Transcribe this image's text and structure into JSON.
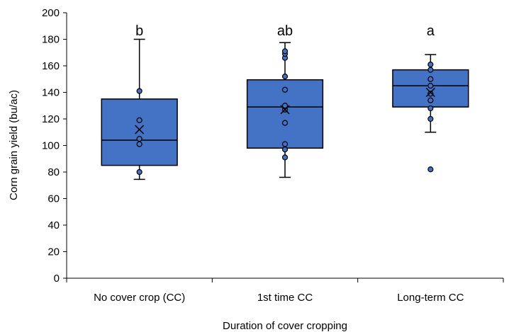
{
  "chart_data": {
    "type": "box",
    "title": "",
    "xlabel": "Duration of cover cropping",
    "ylabel": "Corn grain yield (bu/ac)",
    "ylim": [
      0,
      200
    ],
    "yticks": [
      0,
      20,
      40,
      60,
      80,
      100,
      120,
      140,
      160,
      180,
      200
    ],
    "grid": false,
    "legend": "none",
    "colors": {
      "box_fill": "#4472C4",
      "box_stroke": "#000000",
      "point_fill": "#4472C4"
    },
    "categories": [
      "No cover crop (CC)",
      "1st time CC",
      "Long-term CC"
    ],
    "significance_letters": [
      "b",
      "ab",
      "a"
    ],
    "boxes": [
      {
        "whisker_low": 74.5,
        "q1": 85,
        "median": 104,
        "q3": 135,
        "whisker_high": 180,
        "mean": 112
      },
      {
        "whisker_low": 76,
        "q1": 98,
        "median": 129,
        "q3": 149.5,
        "whisker_high": 177.5,
        "mean": 127
      },
      {
        "whisker_low": 110,
        "q1": 129,
        "median": 145,
        "q3": 157,
        "whisker_high": 168.5,
        "mean": 140
      }
    ],
    "points": [
      [
        80,
        101,
        105,
        119,
        141
      ],
      [
        91,
        97,
        101,
        117,
        127,
        130,
        142,
        152,
        166,
        169,
        171
      ],
      [
        82,
        120,
        128,
        134,
        139,
        145,
        150,
        157,
        161
      ]
    ]
  }
}
